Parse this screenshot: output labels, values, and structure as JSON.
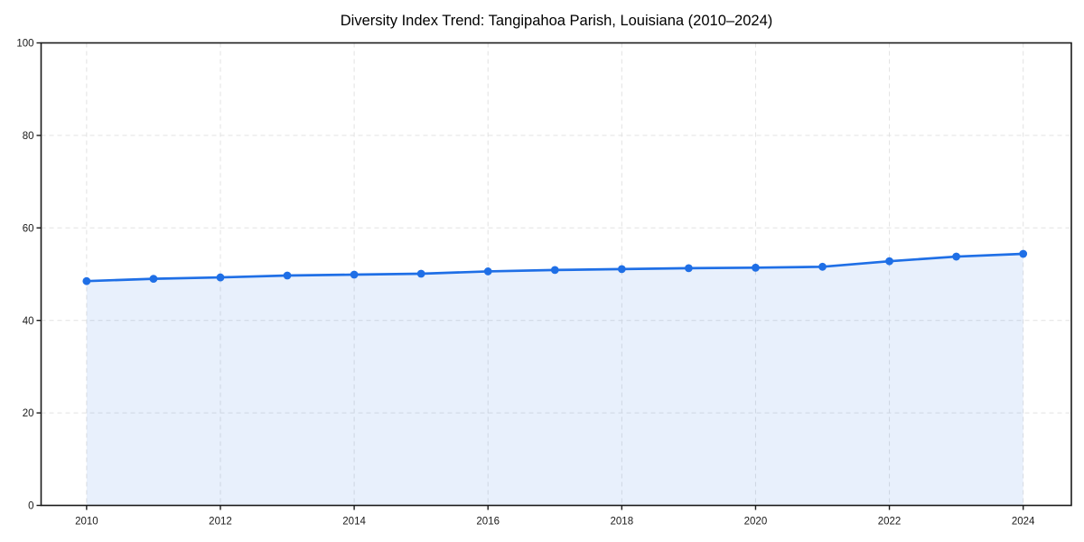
{
  "window": {
    "background": "#ffffff"
  },
  "chart_data": {
    "type": "area",
    "title": "Diversity Index Trend: Tangipahoa Parish, Louisiana (2010–2024)",
    "x": [
      2010,
      2011,
      2012,
      2013,
      2014,
      2015,
      2016,
      2017,
      2018,
      2019,
      2020,
      2021,
      2022,
      2023,
      2024
    ],
    "series": [
      {
        "name": "Diversity Index",
        "values": [
          48.5,
          49.0,
          49.3,
          49.7,
          49.9,
          50.1,
          50.6,
          50.9,
          51.1,
          51.3,
          51.4,
          51.6,
          52.8,
          53.8,
          54.4
        ]
      }
    ],
    "xlabel": "",
    "ylabel": "",
    "xlim": [
      2009.32,
      2024.72
    ],
    "ylim": [
      0,
      100
    ],
    "xticks": [
      2010,
      2012,
      2014,
      2016,
      2018,
      2020,
      2022,
      2024
    ],
    "yticks": [
      0,
      20,
      40,
      60,
      80,
      100
    ],
    "grid": {
      "visible": true,
      "style": "dashed",
      "which": "major-both"
    },
    "legend": {
      "visible": false
    },
    "marker": "circle",
    "colors": {
      "line": "#1f6fe6",
      "marker": "#1f6fe6",
      "fill": "rgba(31, 111, 230, 0.10)",
      "grid": "#e2e2e2",
      "axis": "#1a1a1a",
      "tick_text": "#1a1a1a",
      "title_text": "#000000"
    }
  }
}
